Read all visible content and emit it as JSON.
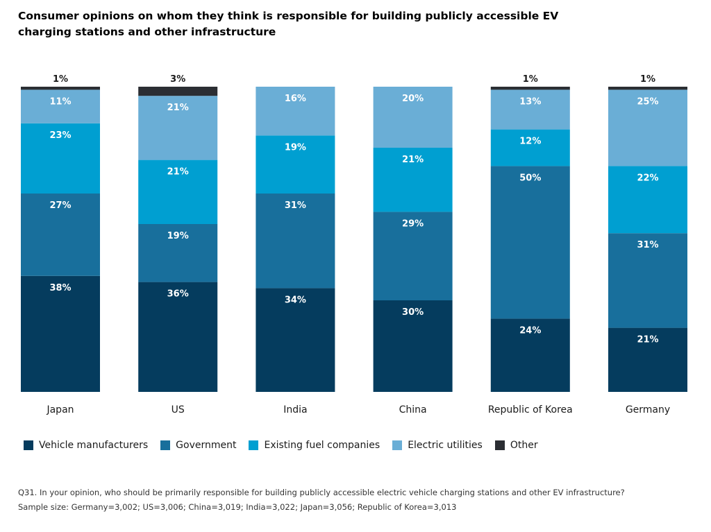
{
  "chart_data": {
    "type": "bar",
    "stacked": true,
    "orientation": "vertical",
    "title": "Consumer opinions on whom they think is responsible for building publicly accessible EV charging stations and other infrastructure",
    "categories": [
      "Japan",
      "US",
      "India",
      "China",
      "Republic of Korea",
      "Germany"
    ],
    "series": [
      {
        "name": "Vehicle manufacturers",
        "color": "#053c5e",
        "values": [
          38,
          36,
          34,
          30,
          24,
          21
        ]
      },
      {
        "name": "Government",
        "color": "#186f9c",
        "values": [
          27,
          19,
          31,
          29,
          50,
          31
        ]
      },
      {
        "name": "Existing fuel companies",
        "color": "#009fd1",
        "values": [
          23,
          21,
          19,
          21,
          12,
          22
        ]
      },
      {
        "name": "Electric utilities",
        "color": "#6aaed6",
        "values": [
          11,
          21,
          16,
          20,
          13,
          25
        ]
      },
      {
        "name": "Other",
        "color": "#2b2e33",
        "values": [
          1,
          3,
          0,
          0,
          1,
          1
        ]
      }
    ],
    "ylim": [
      0,
      100
    ],
    "grid": false,
    "legend_position": "bottom-left",
    "footnotes": [
      "Q31. In your opinion, who should be primarily responsible for building publicly accessible electric vehicle charging stations and other EV infrastructure?",
      "Sample size: Germany=3,002; US=3,006; China=3,019; India=3,022; Japan=3,056; Republic of Korea=3,013"
    ]
  }
}
